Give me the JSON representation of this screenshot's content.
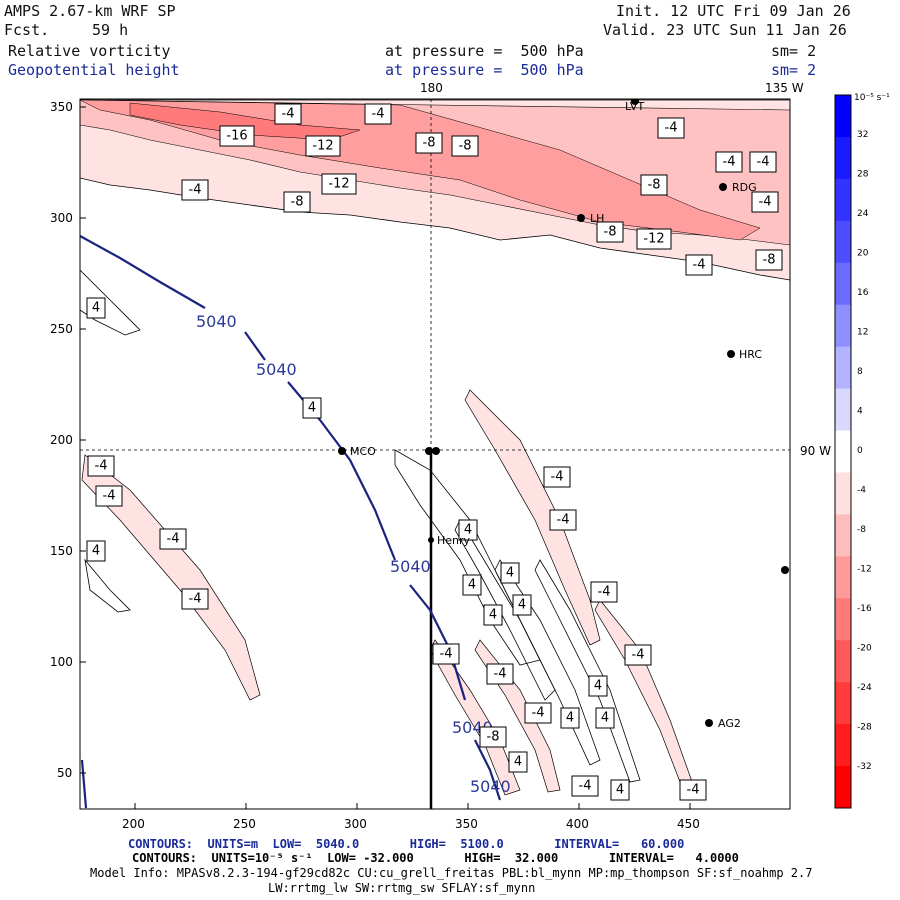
{
  "header": {
    "model": "AMPS 2.67-km WRF SP",
    "init": "Init. 12 UTC Fri 09 Jan 26",
    "fcst_label": "Fcst.",
    "fcst_value": "59 h",
    "valid": "Valid. 23 UTC Sun 11 Jan 26",
    "field1": "Relative vorticity",
    "field1_level": "at pressure =  500 hPa",
    "field1_sm": "sm= 2",
    "field2": "Geopotential height",
    "field2_level": "at pressure =  500 hPa",
    "field2_sm": "sm= 2"
  },
  "map": {
    "top_labels": [
      "180",
      "135 W"
    ],
    "side_label": "90 W",
    "x_ticks": [
      "200",
      "250",
      "300",
      "350",
      "400",
      "450"
    ],
    "y_ticks": [
      "350",
      "300",
      "250",
      "200",
      "150",
      "100",
      "50"
    ],
    "stations": [
      "LVT",
      "RDG",
      "LH",
      "HRC",
      "MCO",
      "Henry",
      "AG2"
    ],
    "height_contour_label": "5040",
    "vorticity_labels": [
      "-4",
      "-8",
      "-12",
      "-16",
      "4"
    ]
  },
  "colorbar": {
    "unit": "10⁻⁵ s⁻¹",
    "levels": [
      "32",
      "28",
      "24",
      "20",
      "16",
      "12",
      "8",
      "4",
      "0",
      "-4",
      "-8",
      "-12",
      "-16",
      "-20",
      "-24",
      "-28",
      "-32"
    ],
    "colors": [
      "#0000ff",
      "#1a1aff",
      "#3333ff",
      "#4d4dff",
      "#6b6bff",
      "#8f8fff",
      "#b3b3ff",
      "#d9d9ff",
      "#ffffff",
      "#ffe0e0",
      "#ffbcbc",
      "#ff9a9a",
      "#ff7a7a",
      "#ff5a5a",
      "#ff3c3c",
      "#ff1e1e",
      "#ff0000"
    ]
  },
  "footer": {
    "line1": "CONTOURS:  UNITS=m  LOW=  5040.0       HIGH=  5100.0       INTERVAL=   60.000",
    "line2": "CONTOURS:  UNITS=10⁻⁵ s⁻¹  LOW= -32.000       HIGH=  32.000       INTERVAL=   4.0000",
    "line3": "Model Info: MPASv8.2.3-194-gf29cd82c CU:cu_grell_freitas PBL:bl_mynn MP:mp_thompson SF:sf_noahmp 2.7",
    "line4": "LW:rrtmg_lw SW:rrtmg_sw SFLAY:sf_mynn"
  }
}
